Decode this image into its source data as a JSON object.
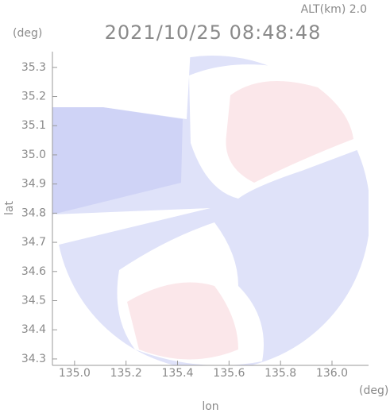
{
  "chart_data": {
    "type": "radar-image",
    "title": "2021/10/25 08:48:48",
    "subtitle": "ALT(km) 2.0",
    "x_label": "lon",
    "y_label": "lat",
    "x_unit": "(deg)",
    "y_unit": "(deg)",
    "xlim": [
      134.914,
      136.142
    ],
    "xticks": [
      {
        "value": 135.0,
        "label": "135.0"
      },
      135.2,
      135.4,
      135.6,
      135.8,
      {
        "value": 136.0,
        "label": "136.0"
      }
    ],
    "ylim": [
      34.278,
      35.354
    ],
    "yticks": [
      34.3,
      34.4,
      34.5,
      34.6,
      34.7,
      34.8,
      34.9,
      {
        "value": 35.0,
        "label": "35.0"
      },
      35.1,
      35.2,
      35.3
    ]
  }
}
